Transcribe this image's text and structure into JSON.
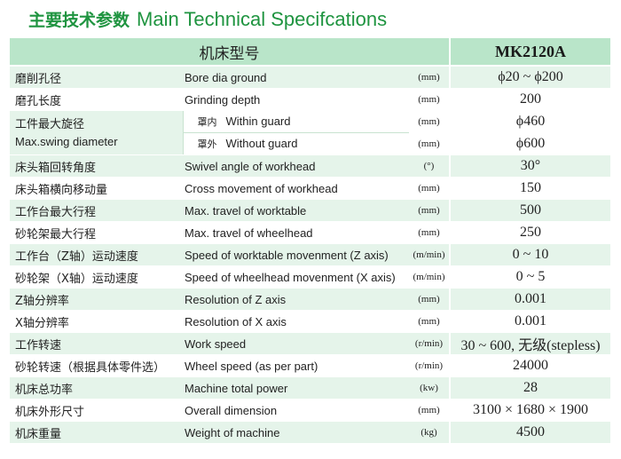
{
  "title": {
    "cn": "主要技术参数",
    "en": "Main Technical Specifcations"
  },
  "header": {
    "label": "机床型号",
    "model": "MK2120A"
  },
  "rows": [
    {
      "cn": "磨削孔径",
      "en": "Bore dia ground",
      "unit": "(mm)",
      "value": "ϕ20 ~ ϕ200"
    },
    {
      "cn": "磨孔长度",
      "en": "Grinding depth",
      "unit": "(mm)",
      "value": "200"
    },
    {
      "cn": "床头箱回转角度",
      "en": "Swivel angle of workhead",
      "unit": "(°)",
      "value": "30°"
    },
    {
      "cn": "床头箱横向移动量",
      "en": "Cross movement of workhead",
      "unit": "(mm)",
      "value": "150"
    },
    {
      "cn": "工作台最大行程",
      "en": "Max. travel of worktable",
      "unit": "(mm)",
      "value": "500"
    },
    {
      "cn": "砂轮架最大行程",
      "en": "Max. travel of wheelhead",
      "unit": "(mm)",
      "value": "250"
    },
    {
      "cn": "工作台（Z轴）运动速度",
      "en": "Speed of worktable movenment (Z axis)",
      "unit": "(m/min)",
      "value": "0 ~ 10"
    },
    {
      "cn": "砂轮架（X轴）运动速度",
      "en": "Speed of wheelhead movenment (X axis)",
      "unit": "(m/min)",
      "value": "0 ~ 5"
    },
    {
      "cn": "Z轴分辨率",
      "en": "Resolution of Z axis",
      "unit": "(mm)",
      "value": "0.001"
    },
    {
      "cn": "X轴分辨率",
      "en": "Resolution of X axis",
      "unit": "(mm)",
      "value": "0.001"
    },
    {
      "cn": "工作转速",
      "en": "Work speed",
      "unit": "(r/min)",
      "value": "30 ~ 600, 无级(stepless)"
    },
    {
      "cn": "砂轮转速（根据具体零件选）",
      "en": "Wheel speed (as per part)",
      "unit": "(r/min)",
      "value": "24000"
    },
    {
      "cn": "机床总功率",
      "en": "Machine total power",
      "unit": "(kw)",
      "value": "28"
    },
    {
      "cn": "机床外形尺寸",
      "en": "Overall dimension",
      "unit": "(mm)",
      "value": "3100 × 1680 × 1900"
    },
    {
      "cn": "机床重量",
      "en": "Weight of machine",
      "unit": "(kg)",
      "value": "4500"
    }
  ],
  "swing": {
    "cn": "工件最大旋径",
    "en": "Max.swing diameter",
    "within": {
      "tag": "罩内",
      "en": "Within guard",
      "unit": "(mm)",
      "value": "ϕ460"
    },
    "without": {
      "tag": "罩外",
      "en": "Without guard",
      "unit": "(mm)",
      "value": "ϕ600"
    }
  }
}
